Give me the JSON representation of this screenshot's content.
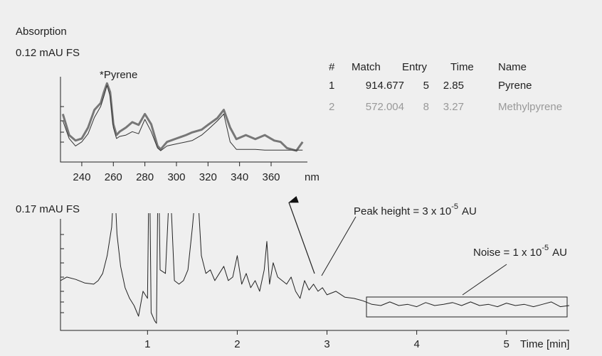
{
  "header": "Absorption",
  "table": {
    "columns": [
      "#",
      "Match",
      "Entry",
      "Time",
      "Name"
    ],
    "rows": [
      [
        "1",
        "914.677",
        "5",
        "2.85",
        "Pyrene"
      ],
      [
        "2",
        "572.004",
        "8",
        "3.27",
        "Methylpyrene"
      ]
    ]
  },
  "chart_data": [
    {
      "type": "line",
      "ylabel": "0.12 mAU FS",
      "xlabel": "nm",
      "annotation": "*Pyrene",
      "x": [
        228,
        232,
        236,
        240,
        244,
        248,
        252,
        254,
        256,
        258,
        260,
        262,
        264,
        268,
        272,
        276,
        280,
        284,
        288,
        290,
        294,
        300,
        306,
        310,
        316,
        320,
        326,
        330,
        334,
        338,
        344,
        350,
        356,
        362,
        366,
        370,
        376,
        380
      ],
      "series": [
        {
          "color": "#777777",
          "values": [
            0.057,
            0.026,
            0.018,
            0.021,
            0.037,
            0.063,
            0.073,
            0.089,
            0.102,
            0.089,
            0.042,
            0.026,
            0.031,
            0.037,
            0.045,
            0.041,
            0.057,
            0.042,
            0.01,
            0.005,
            0.016,
            0.021,
            0.026,
            0.03,
            0.034,
            0.041,
            0.051,
            0.063,
            0.037,
            0.02,
            0.026,
            0.02,
            0.026,
            0.018,
            0.016,
            0.007,
            0.003,
            0.016
          ]
        },
        {
          "color": "#333333",
          "values": [
            0.047,
            0.021,
            0.01,
            0.016,
            0.028,
            0.052,
            0.068,
            0.083,
            0.099,
            0.083,
            0.037,
            0.021,
            0.024,
            0.026,
            0.031,
            0.028,
            0.049,
            0.031,
            0.007,
            0.003,
            0.01,
            0.013,
            0.016,
            0.018,
            0.026,
            0.034,
            0.047,
            0.057,
            0.016,
            0.005,
            0.005,
            0.005,
            0.004,
            0.004,
            0.004,
            0.004,
            0.004,
            0.004
          ]
        }
      ],
      "xlim": [
        226.5,
        383
      ],
      "xticks": [
        240,
        260,
        280,
        300,
        320,
        340,
        360
      ],
      "ylim": [
        0,
        0.12
      ]
    },
    {
      "type": "line",
      "ylabel": "0.17 mAU FS",
      "xlabel": "Time [min]",
      "x": [
        0.03,
        0.1,
        0.2,
        0.3,
        0.4,
        0.45,
        0.5,
        0.55,
        0.6,
        0.63,
        0.66,
        0.7,
        0.75,
        0.8,
        0.85,
        0.9,
        0.95,
        1.0,
        1.02,
        1.04,
        1.08,
        1.1,
        1.12,
        1.14,
        1.2,
        1.25,
        1.3,
        1.35,
        1.4,
        1.45,
        1.5,
        1.55,
        1.6,
        1.65,
        1.7,
        1.75,
        1.8,
        1.85,
        1.9,
        1.95,
        2.0,
        2.05,
        2.1,
        2.15,
        2.2,
        2.25,
        2.3,
        2.33,
        2.36,
        2.4,
        2.45,
        2.5,
        2.55,
        2.6,
        2.65,
        2.7,
        2.75,
        2.8,
        2.85,
        2.9,
        2.95,
        3.0,
        3.1,
        3.2,
        3.3,
        3.4,
        3.5,
        3.6,
        3.7,
        3.8,
        3.9,
        4.0,
        4.1,
        4.2,
        4.3,
        4.4,
        4.5,
        4.6,
        4.7,
        4.8,
        4.9,
        5.0,
        5.1,
        5.2,
        5.3,
        5.4,
        5.5,
        5.6,
        5.7
      ],
      "color": "#222222",
      "values": [
        0.066,
        0.072,
        0.068,
        0.062,
        0.06,
        0.066,
        0.078,
        0.108,
        0.156,
        0.24,
        0.144,
        0.09,
        0.054,
        0.036,
        0.024,
        0.006,
        0.048,
        0.036,
        0.3,
        0.012,
        -0.002,
        -0.006,
        0.3,
        0.084,
        0.078,
        0.24,
        0.066,
        0.06,
        0.066,
        0.084,
        0.156,
        0.24,
        0.108,
        0.078,
        0.084,
        0.066,
        0.078,
        0.09,
        0.066,
        0.072,
        0.108,
        0.06,
        0.078,
        0.054,
        0.066,
        0.048,
        0.084,
        0.132,
        0.06,
        0.096,
        0.072,
        0.066,
        0.06,
        0.072,
        0.048,
        0.036,
        0.066,
        0.05,
        0.06,
        0.048,
        0.054,
        0.042,
        0.048,
        0.038,
        0.036,
        0.032,
        0.026,
        0.024,
        0.03,
        0.024,
        0.026,
        0.022,
        0.029,
        0.024,
        0.026,
        0.029,
        0.024,
        0.03,
        0.024,
        0.026,
        0.022,
        0.028,
        0.024,
        0.026,
        0.022,
        0.026,
        0.03,
        0.022,
        0.024
      ],
      "xlim": [
        0.03,
        5.7
      ],
      "xticks": [
        1,
        2,
        3,
        4,
        5
      ],
      "ylim": [
        0,
        0.17
      ],
      "annotations": [
        {
          "text": "Peak height = 3 x 10",
          "exponent": "-5",
          "unit": "AU"
        },
        {
          "text": "Noise = 1 x 10",
          "exponent": "-5",
          "unit": "AU"
        }
      ]
    }
  ]
}
